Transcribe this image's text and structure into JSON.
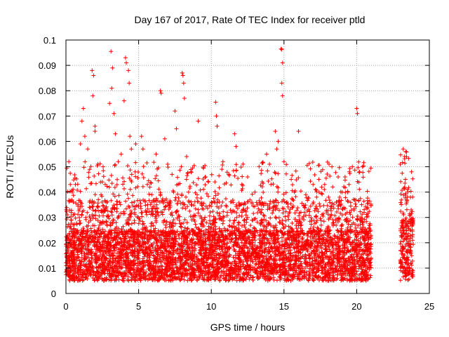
{
  "chart_data": {
    "type": "scatter",
    "title": "Day 167 of 2017, Rate Of TEC Index for receiver ptld",
    "xlabel": "GPS time / hours",
    "ylabel": "ROTI / TECUs",
    "xlim": [
      0,
      25
    ],
    "ylim": [
      0,
      0.1
    ],
    "x_ticks": [
      0,
      5,
      10,
      15,
      20,
      25
    ],
    "y_ticks": [
      0,
      0.01,
      0.02,
      0.03,
      0.04,
      0.05,
      0.06,
      0.07,
      0.08,
      0.09,
      0.1
    ],
    "x_tick_labels": [
      "0",
      "5",
      "10",
      "15",
      "20",
      "25"
    ],
    "y_tick_labels": [
      "0",
      "0.01",
      "0.02",
      "0.03",
      "0.04",
      "0.05",
      "0.06",
      "0.07",
      "0.08",
      "0.09",
      "0.1"
    ],
    "grid": true,
    "marker": "plus",
    "series": [
      {
        "color": "#ff0000",
        "data_segments": [
          {
            "x_range": [
              0,
              21.0
            ],
            "typical_y_range": [
              0.005,
              0.025
            ]
          },
          {
            "x_range": [
              23.0,
              23.9
            ],
            "typical_y_range": [
              0.005,
              0.03
            ]
          }
        ],
        "points": [
          [
            0.2,
            0.052
          ],
          [
            0.3,
            0.043
          ],
          [
            0.5,
            0.031
          ],
          [
            1.0,
            0.059
          ],
          [
            1.1,
            0.068
          ],
          [
            1.2,
            0.073
          ],
          [
            1.3,
            0.062
          ],
          [
            1.5,
            0.057
          ],
          [
            1.8,
            0.088
          ],
          [
            1.9,
            0.086
          ],
          [
            1.85,
            0.078
          ],
          [
            2.0,
            0.064
          ],
          [
            2.0,
            0.066
          ],
          [
            2.2,
            0.051
          ],
          [
            2.5,
            0.044
          ],
          [
            2.7,
            0.043
          ],
          [
            3.0,
            0.075
          ],
          [
            3.1,
            0.0955
          ],
          [
            3.2,
            0.089
          ],
          [
            3.15,
            0.081
          ],
          [
            3.3,
            0.071
          ],
          [
            3.4,
            0.063
          ],
          [
            3.6,
            0.052
          ],
          [
            3.8,
            0.055
          ],
          [
            4.0,
            0.076
          ],
          [
            4.1,
            0.093
          ],
          [
            4.15,
            0.091
          ],
          [
            4.3,
            0.088
          ],
          [
            4.35,
            0.083
          ],
          [
            4.4,
            0.062
          ],
          [
            4.5,
            0.057
          ],
          [
            4.8,
            0.059
          ],
          [
            5.2,
            0.062
          ],
          [
            5.3,
            0.057
          ],
          [
            5.6,
            0.043
          ],
          [
            5.9,
            0.039
          ],
          [
            6.2,
            0.055
          ],
          [
            6.5,
            0.08
          ],
          [
            6.55,
            0.079
          ],
          [
            6.8,
            0.061
          ],
          [
            7.0,
            0.051
          ],
          [
            7.3,
            0.047
          ],
          [
            7.5,
            0.072
          ],
          [
            7.6,
            0.065
          ],
          [
            8.0,
            0.087
          ],
          [
            8.05,
            0.086
          ],
          [
            8.1,
            0.083
          ],
          [
            8.15,
            0.077
          ],
          [
            8.3,
            0.054
          ],
          [
            8.6,
            0.048
          ],
          [
            9.1,
            0.068
          ],
          [
            9.6,
            0.046
          ],
          [
            9.8,
            0.044
          ],
          [
            10.3,
            0.0755
          ],
          [
            10.35,
            0.07
          ],
          [
            10.4,
            0.066
          ],
          [
            10.8,
            0.052
          ],
          [
            11.2,
            0.047
          ],
          [
            11.6,
            0.063
          ],
          [
            11.7,
            0.058
          ],
          [
            12.1,
            0.043
          ],
          [
            12.5,
            0.046
          ],
          [
            13.0,
            0.04
          ],
          [
            13.5,
            0.044
          ],
          [
            13.8,
            0.055
          ],
          [
            14.0,
            0.051
          ],
          [
            14.4,
            0.064
          ],
          [
            14.5,
            0.057
          ],
          [
            14.6,
            0.06
          ],
          [
            14.8,
            0.0965
          ],
          [
            14.85,
            0.0963
          ],
          [
            14.9,
            0.091
          ],
          [
            14.85,
            0.083
          ],
          [
            14.9,
            0.078
          ],
          [
            15.0,
            0.052
          ],
          [
            15.5,
            0.045
          ],
          [
            16.0,
            0.064
          ],
          [
            16.5,
            0.039
          ],
          [
            17.0,
            0.043
          ],
          [
            17.4,
            0.045
          ],
          [
            17.8,
            0.043
          ],
          [
            18.1,
            0.051
          ],
          [
            18.3,
            0.05
          ],
          [
            18.6,
            0.036
          ],
          [
            19.2,
            0.046
          ],
          [
            19.5,
            0.048
          ],
          [
            19.7,
            0.05
          ],
          [
            20.0,
            0.073
          ],
          [
            20.05,
            0.071
          ],
          [
            20.2,
            0.048
          ],
          [
            20.4,
            0.05
          ],
          [
            23.0,
            0.051
          ],
          [
            23.2,
            0.057
          ],
          [
            23.3,
            0.054
          ],
          [
            23.5,
            0.041
          ],
          [
            23.7,
            0.038
          ],
          [
            23.8,
            0.027
          ]
        ]
      }
    ]
  }
}
